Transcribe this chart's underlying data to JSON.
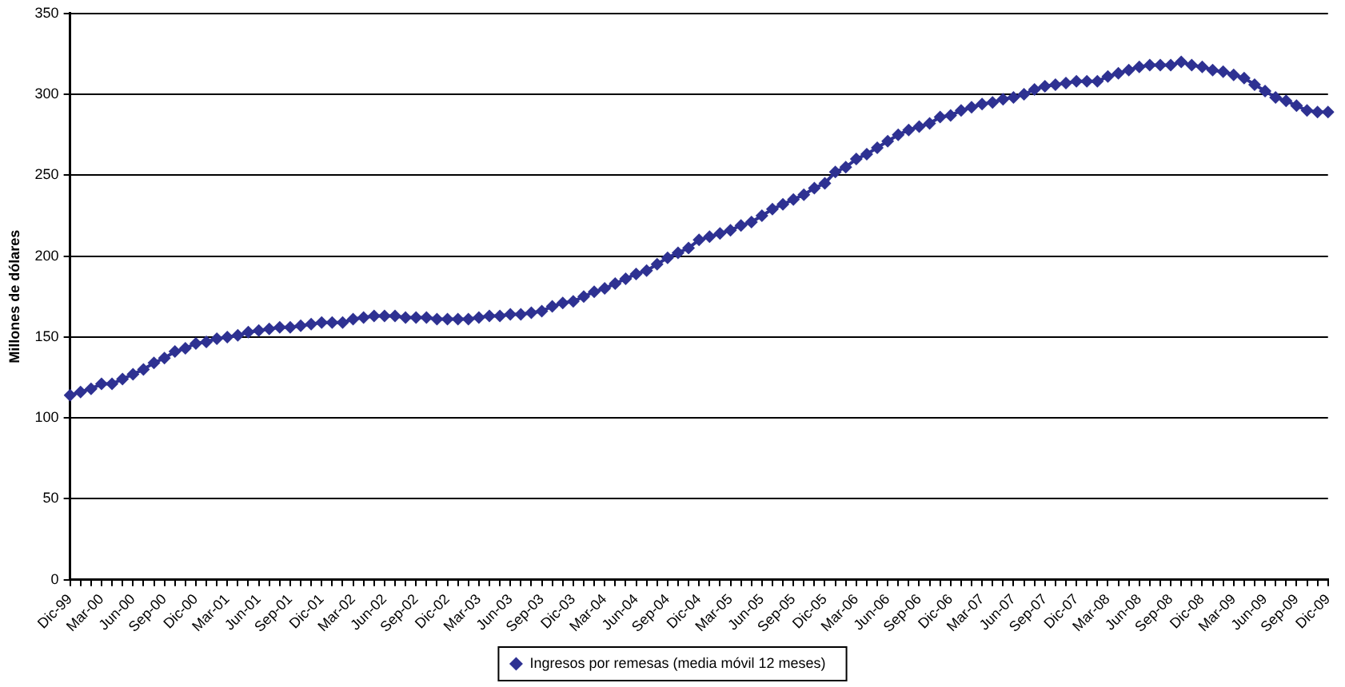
{
  "chart_data": {
    "type": "line",
    "ylabel": "Millones de dólares",
    "categories": [
      "Dic-99",
      null,
      null,
      "Mar-00",
      null,
      null,
      "Jun-00",
      null,
      null,
      "Sep-00",
      null,
      null,
      "Dic-00",
      null,
      null,
      "Mar-01",
      null,
      null,
      "Jun-01",
      null,
      null,
      "Sep-01",
      null,
      null,
      "Dic-01",
      null,
      null,
      "Mar-02",
      null,
      null,
      "Jun-02",
      null,
      null,
      "Sep-02",
      null,
      null,
      "Dic-02",
      null,
      null,
      "Mar-03",
      null,
      null,
      "Jun-03",
      null,
      null,
      "Sep-03",
      null,
      null,
      "Dic-03",
      null,
      null,
      "Mar-04",
      null,
      null,
      "Jun-04",
      null,
      null,
      "Sep-04",
      null,
      null,
      "Dic-04",
      null,
      null,
      "Mar-05",
      null,
      null,
      "Jun-05",
      null,
      null,
      "Sep-05",
      null,
      null,
      "Dic-05",
      null,
      null,
      "Mar-06",
      null,
      null,
      "Jun-06",
      null,
      null,
      "Sep-06",
      null,
      null,
      "Dic-06",
      null,
      null,
      "Mar-07",
      null,
      null,
      "Jun-07",
      null,
      null,
      "Sep-07",
      null,
      null,
      "Dic-07",
      null,
      null,
      "Mar-08",
      null,
      null,
      "Jun-08",
      null,
      null,
      "Sep-08",
      null,
      null,
      "Dic-08",
      null,
      null,
      "Mar-09",
      null,
      null,
      "Jun-09",
      null,
      null,
      "Sep-09",
      null,
      null,
      "Dic-09"
    ],
    "series": [
      {
        "name": "Ingresos por remesas (media móvil 12 meses)",
        "color": "#2e3192",
        "values": [
          114,
          116,
          118,
          121,
          121,
          124,
          127,
          130,
          134,
          137,
          141,
          143,
          146,
          147,
          149,
          150,
          151,
          153,
          154,
          155,
          156,
          156,
          157,
          158,
          159,
          159,
          159,
          161,
          162,
          163,
          163,
          163,
          162,
          162,
          162,
          161,
          161,
          161,
          161,
          162,
          163,
          163,
          164,
          164,
          165,
          166,
          169,
          171,
          172,
          175,
          178,
          180,
          183,
          186,
          189,
          191,
          195,
          199,
          202,
          205,
          210,
          212,
          214,
          216,
          219,
          221,
          225,
          229,
          232,
          235,
          238,
          242,
          245,
          252,
          255,
          260,
          263,
          267,
          271,
          275,
          278,
          280,
          282,
          286,
          287,
          290,
          292,
          294,
          295,
          297,
          298,
          300,
          303,
          305,
          306,
          307,
          308,
          308,
          308,
          311,
          313,
          315,
          317,
          318,
          318,
          318,
          320,
          318,
          317,
          315,
          314,
          312,
          310,
          306,
          302,
          298,
          296,
          293,
          290,
          289,
          289
        ]
      }
    ],
    "ylim": [
      0,
      350
    ],
    "yticks": [
      0,
      50,
      100,
      150,
      200,
      250,
      300,
      350
    ],
    "grid": "y",
    "legend": "bottom",
    "marker": "diamond",
    "line_style": "solid"
  }
}
